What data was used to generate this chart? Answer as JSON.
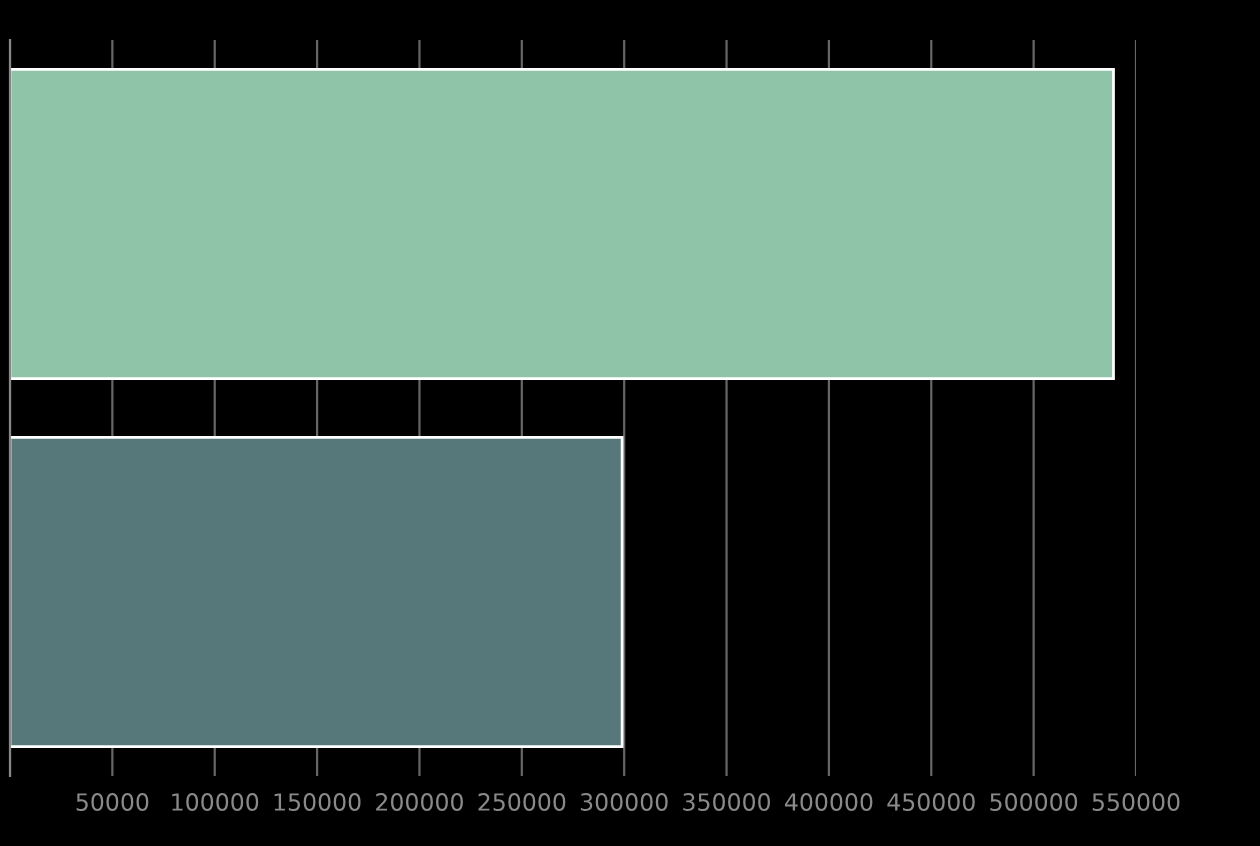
{
  "chart_data": {
    "type": "bar",
    "orientation": "horizontal",
    "categories": [
      null,
      null
    ],
    "values": [
      539000,
      299000
    ],
    "colors": [
      "#8fc4a8",
      "#57787b"
    ],
    "xlim": [
      0,
      550000
    ],
    "xticks": [
      {
        "value": 0,
        "label": null
      },
      50000,
      100000,
      150000,
      200000,
      250000,
      300000,
      350000,
      400000,
      450000,
      500000,
      550000
    ],
    "grid": "x",
    "tick_labels": "x"
  }
}
